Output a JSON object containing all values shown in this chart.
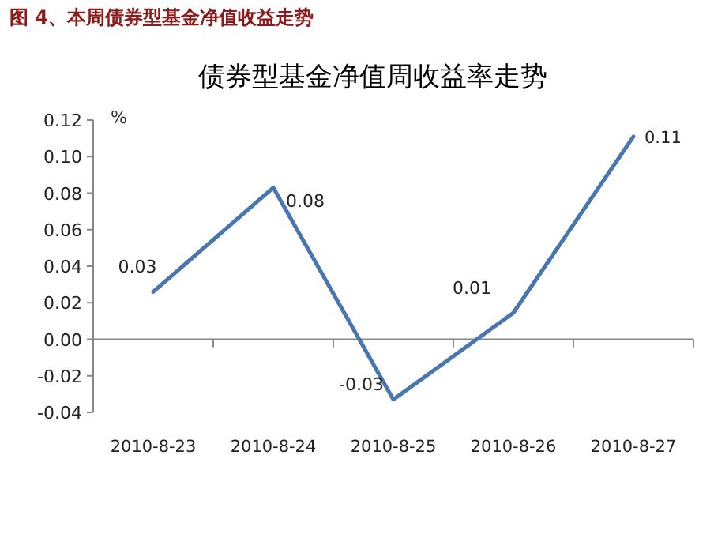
{
  "chart_data": {
    "type": "line",
    "title": "图 4、本周债券型基金净值收益走势",
    "subtitle": "债券型基金净值周收益率走势",
    "ylabel": "%",
    "categories": [
      "2010-8-23",
      "2010-8-24",
      "2010-8-25",
      "2010-8-26",
      "2010-8-27"
    ],
    "series": [
      {
        "color": "#4a76b0",
        "values": [
          0.026,
          0.083,
          -0.033,
          0.0145,
          0.111
        ],
        "value_labels": [
          "0.03",
          "0.08",
          "-0.03",
          "0.01",
          "0.11"
        ]
      }
    ],
    "ylim": [
      -0.04,
      0.12
    ],
    "yticks": [
      {
        "value": -0.04,
        "label": "-0.04"
      },
      {
        "value": -0.02,
        "label": "-0.02"
      },
      {
        "value": 0,
        "label": "0.00"
      },
      {
        "value": 0.02,
        "label": "0.02"
      },
      {
        "value": 0.04,
        "label": "0.04"
      },
      {
        "value": 0.06,
        "label": "0.06"
      },
      {
        "value": 0.08,
        "label": "0.08"
      },
      {
        "value": 0.1,
        "label": "0.10"
      },
      {
        "value": 0.12,
        "label": "0.12"
      }
    ],
    "marker": "none",
    "line_style": "solid"
  }
}
